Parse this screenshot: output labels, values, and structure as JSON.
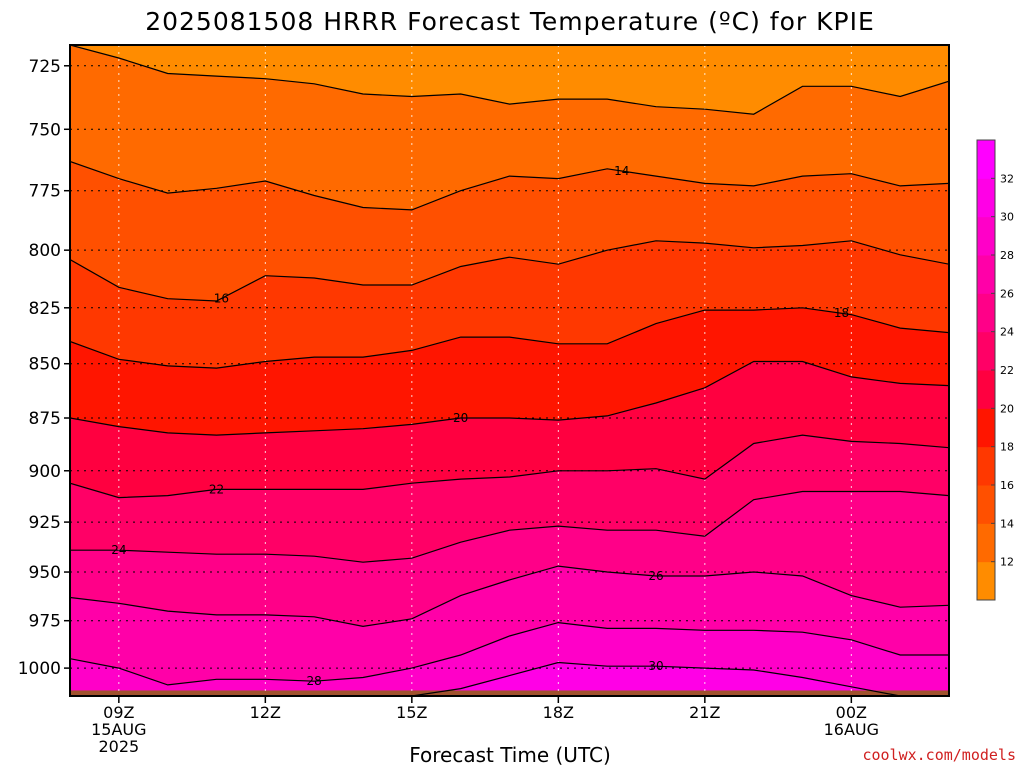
{
  "chart_data": {
    "type": "heatmap",
    "title": "2025081508 HRRR Forecast Temperature (ºC) for KPIE",
    "xlabel": "Forecast Time (UTC)",
    "ylabel": "",
    "x_ticks": [
      {
        "hour": 9,
        "lines": [
          "09Z",
          "15AUG",
          "2025"
        ]
      },
      {
        "hour": 12,
        "lines": [
          "12Z"
        ]
      },
      {
        "hour": 15,
        "lines": [
          "15Z"
        ]
      },
      {
        "hour": 18,
        "lines": [
          "18Z"
        ]
      },
      {
        "hour": 21,
        "lines": [
          "21Z"
        ]
      },
      {
        "hour": 24,
        "lines": [
          "00Z",
          "16AUG"
        ]
      }
    ],
    "xlim": [
      8,
      26
    ],
    "y_ticks": [
      725,
      750,
      775,
      800,
      825,
      850,
      875,
      900,
      925,
      950,
      975,
      1000
    ],
    "ylim": [
      717,
      1015
    ],
    "y_scale": "log-pressure",
    "surface_pressure": 1012,
    "grid": "dotted",
    "colorbar": {
      "levels": [
        10,
        12,
        14,
        16,
        18,
        20,
        22,
        24,
        26,
        28,
        30,
        32,
        34
      ],
      "tick_labels": [
        "12",
        "14",
        "16",
        "18",
        "20",
        "22",
        "24",
        "26",
        "28",
        "30",
        "32"
      ],
      "colors": [
        "#ff8c00",
        "#ff6a00",
        "#ff5000",
        "#ff3800",
        "#ff1500",
        "#ff0040",
        "#ff0066",
        "#ff0088",
        "#ff00a8",
        "#ff00c8",
        "#ff00e6",
        "#ff00ff"
      ]
    },
    "x_hours": [
      8,
      9,
      10,
      11,
      12,
      13,
      14,
      15,
      16,
      17,
      18,
      19,
      20,
      21,
      22,
      23,
      24,
      25,
      26
    ],
    "contours": [
      {
        "level": 12,
        "label": "",
        "p": [
          717,
          722,
          728,
          729,
          730,
          732,
          736,
          737,
          736,
          740,
          738,
          738,
          741,
          742,
          744,
          733,
          733,
          737,
          731
        ]
      },
      {
        "level": 14,
        "label": "14",
        "label_hour": 19.3,
        "p": [
          763,
          770,
          776,
          774,
          771,
          777,
          782,
          783,
          775,
          769,
          770,
          766,
          769,
          772,
          773,
          769,
          768,
          773,
          772
        ]
      },
      {
        "level": 16,
        "label": "16",
        "label_hour": 11.1,
        "p": [
          804,
          816,
          821,
          822,
          811,
          812,
          815,
          815,
          807,
          803,
          806,
          800,
          796,
          797,
          799,
          798,
          796,
          802,
          806
        ]
      },
      {
        "level": 18,
        "label": "18",
        "label_hour": 23.8,
        "p": [
          840,
          848,
          851,
          852,
          849,
          847,
          847,
          844,
          838,
          838,
          841,
          841,
          832,
          826,
          826,
          825,
          828,
          834,
          836
        ]
      },
      {
        "level": 20,
        "label": "20",
        "label_hour": 16,
        "p": [
          875,
          879,
          882,
          883,
          882,
          881,
          880,
          878,
          875,
          875,
          876,
          874,
          868,
          861,
          849,
          849,
          856,
          859,
          860
        ]
      },
      {
        "level": 22,
        "label": "22",
        "label_hour": 11,
        "p": [
          906,
          913,
          912,
          909,
          909,
          909,
          909,
          906,
          904,
          903,
          900,
          900,
          899,
          904,
          887,
          883,
          886,
          887,
          889
        ]
      },
      {
        "level": 24,
        "label": "24",
        "label_hour": 9,
        "p": [
          939,
          939,
          940,
          941,
          941,
          942,
          945,
          943,
          935,
          929,
          927,
          929,
          929,
          932,
          914,
          910,
          910,
          910,
          912
        ]
      },
      {
        "level": 26,
        "label": "26",
        "label_hour": 20,
        "p": [
          963,
          966,
          970,
          972,
          972,
          973,
          978,
          974,
          962,
          954,
          947,
          950,
          952,
          952,
          950,
          952,
          962,
          968,
          967
        ]
      },
      {
        "level": 28,
        "label": "28",
        "label_hour": 13,
        "p": [
          995,
          1000,
          1009,
          1006,
          1006,
          1007,
          1005,
          1000,
          993,
          983,
          976,
          979,
          979,
          980,
          980,
          981,
          985,
          993,
          993
        ]
      },
      {
        "level": 30,
        "label": "30",
        "label_hour": 20,
        "p": [
          1015,
          1015,
          1015,
          1015,
          1015,
          1015,
          1015,
          1015,
          1011,
          1004,
          997,
          999,
          999,
          1000,
          1001,
          1005,
          1010,
          1015,
          1015
        ]
      }
    ]
  },
  "credit": "coolwx.com/models"
}
